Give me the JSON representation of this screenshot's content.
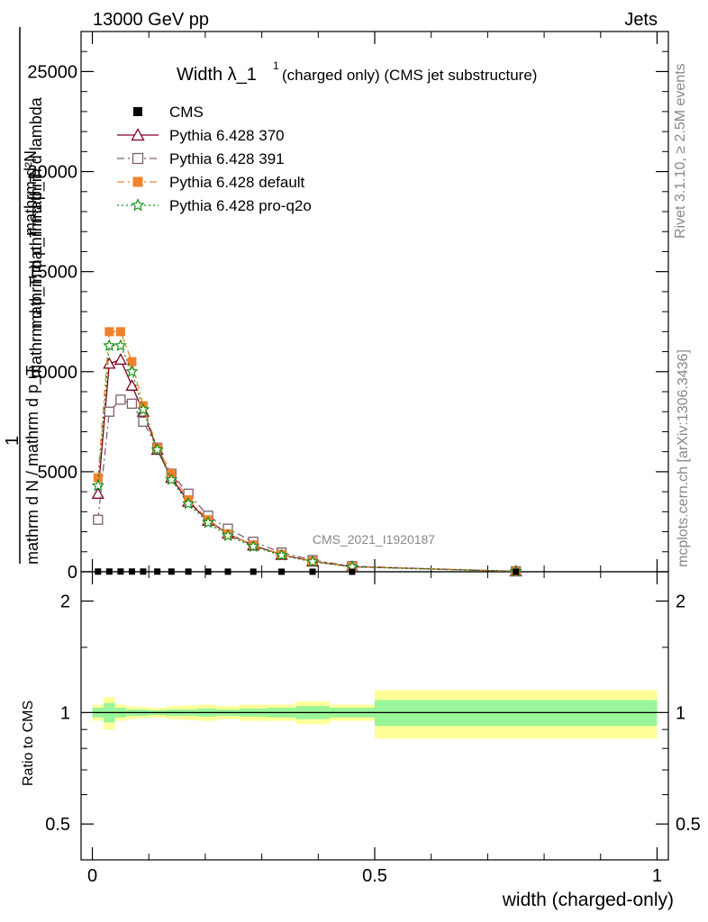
{
  "header": {
    "left": "13000 GeV pp",
    "right": "Jets"
  },
  "title": {
    "main": "Width λ_1",
    "superscript": "1",
    "suffix": "(charged only) (CMS jet substructure)"
  },
  "side_labels": {
    "rivet": "Rivet 3.1.10, ≥ 2.5M events",
    "mcplots": "mcplots.cern.ch [arXiv:1306.3436]"
  },
  "watermark": "CMS_2021_I1920187",
  "axes": {
    "ylabel_upper": {
      "num_line1": "mathrm d²N",
      "num_line2": "mathrm d p_T mathrm d lambda",
      "prefix": "1",
      "den_line1": "mathrm d N / mathrm d p_T",
      "den_line2": "mathrm d p_T mathrm d p_T"
    },
    "ylabel_ratio": "Ratio to CMS",
    "xlabel": "width (charged-only)",
    "upper_yticks": [
      "0",
      "5000",
      "10000",
      "15000",
      "20000",
      "25000"
    ],
    "ratio_yticks": [
      "0.5",
      "1",
      "2"
    ],
    "xticks": [
      "0",
      "0.5",
      "1"
    ]
  },
  "legend": [
    {
      "label": "CMS",
      "color": "#000000",
      "marker": "filled-square",
      "line": "none"
    },
    {
      "label": "Pythia 6.428 370",
      "color": "#800020",
      "marker": "open-triangle",
      "line": "solid"
    },
    {
      "label": "Pythia 6.428 391",
      "color": "#7f5f6f",
      "marker": "open-square",
      "line": "dashdot"
    },
    {
      "label": "Pythia 6.428 default",
      "color": "#f0822d",
      "marker": "filled-square",
      "line": "dashdot"
    },
    {
      "label": "Pythia 6.428 pro-q2o",
      "color": "#0e8c0e",
      "marker": "star",
      "line": "dotted"
    }
  ],
  "chart_data": {
    "type": "line",
    "x": [
      0.01,
      0.03,
      0.05,
      0.07,
      0.09,
      0.115,
      0.14,
      0.17,
      0.205,
      0.24,
      0.285,
      0.335,
      0.39,
      0.46,
      0.75
    ],
    "xlim": [
      -0.02,
      1.02
    ],
    "ylim": [
      0,
      27000
    ],
    "series": [
      {
        "name": "CMS",
        "values": [
          8,
          10,
          11,
          10,
          9,
          8,
          7,
          6,
          5,
          4,
          3,
          2,
          1.5,
          1,
          0.1
        ]
      },
      {
        "name": "Pythia 6.428 370",
        "values": [
          3900,
          10400,
          10600,
          9300,
          8000,
          6100,
          4700,
          3500,
          2550,
          1900,
          1320,
          850,
          520,
          250,
          22
        ]
      },
      {
        "name": "Pythia 6.428 391",
        "values": [
          2600,
          8000,
          8600,
          8400,
          7500,
          6200,
          4900,
          3900,
          2800,
          2150,
          1500,
          960,
          580,
          280,
          24
        ]
      },
      {
        "name": "Pythia 6.428 default",
        "values": [
          4700,
          12000,
          12000,
          10500,
          8300,
          6200,
          4900,
          3600,
          2600,
          1900,
          1340,
          870,
          530,
          260,
          22
        ]
      },
      {
        "name": "Pythia 6.428 pro-q2o",
        "values": [
          4300,
          11300,
          11300,
          10000,
          8100,
          6100,
          4600,
          3400,
          2450,
          1800,
          1260,
          820,
          500,
          240,
          20
        ]
      }
    ],
    "ratio": {
      "ylabel": "Ratio to CMS",
      "ylim": [
        0.4,
        2.4
      ],
      "log": true,
      "bins": [
        {
          "x0": 0.0,
          "x1": 0.02,
          "stat": 0.03,
          "total": 0.05
        },
        {
          "x0": 0.02,
          "x1": 0.04,
          "stat": 0.06,
          "total": 0.1
        },
        {
          "x0": 0.04,
          "x1": 0.06,
          "stat": 0.03,
          "total": 0.05
        },
        {
          "x0": 0.06,
          "x1": 0.08,
          "stat": 0.02,
          "total": 0.04
        },
        {
          "x0": 0.08,
          "x1": 0.1,
          "stat": 0.02,
          "total": 0.035
        },
        {
          "x0": 0.1,
          "x1": 0.13,
          "stat": 0.015,
          "total": 0.03
        },
        {
          "x0": 0.13,
          "x1": 0.155,
          "stat": 0.02,
          "total": 0.04
        },
        {
          "x0": 0.155,
          "x1": 0.185,
          "stat": 0.02,
          "total": 0.045
        },
        {
          "x0": 0.185,
          "x1": 0.22,
          "stat": 0.025,
          "total": 0.05
        },
        {
          "x0": 0.22,
          "x1": 0.26,
          "stat": 0.02,
          "total": 0.04
        },
        {
          "x0": 0.26,
          "x1": 0.31,
          "stat": 0.025,
          "total": 0.05
        },
        {
          "x0": 0.31,
          "x1": 0.36,
          "stat": 0.03,
          "total": 0.05
        },
        {
          "x0": 0.36,
          "x1": 0.42,
          "stat": 0.04,
          "total": 0.07
        },
        {
          "x0": 0.42,
          "x1": 0.5,
          "stat": 0.03,
          "total": 0.05
        },
        {
          "x0": 0.5,
          "x1": 1.0,
          "stat": 0.08,
          "total": 0.15
        }
      ]
    }
  }
}
